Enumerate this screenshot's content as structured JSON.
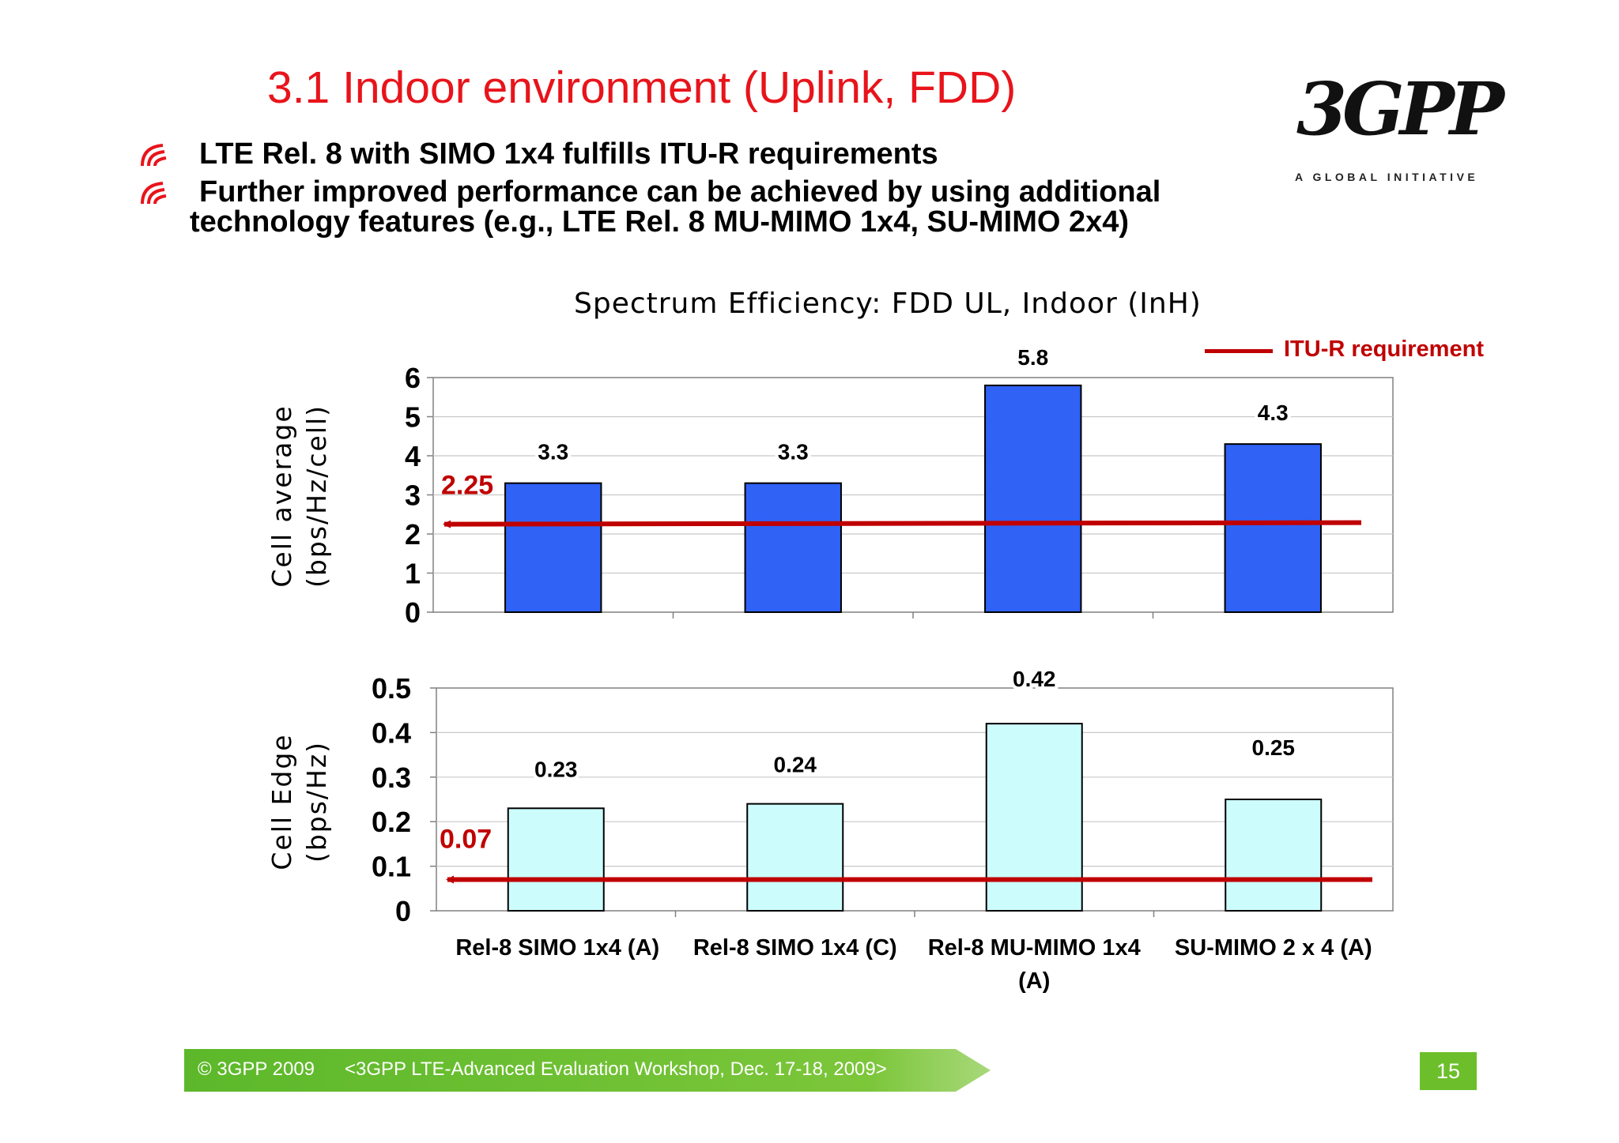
{
  "slide": {
    "title": "3.1 Indoor environment (Uplink, FDD)",
    "bullets": [
      {
        "line1": "LTE Rel. 8 with SIMO 1x4 fulfills ITU-R requirements",
        "line2": ""
      },
      {
        "line1": "Further improved performance can be achieved by using additional",
        "line2": "technology features  (e.g., LTE Rel. 8 MU-MIMO 1x4, SU-MIMO 2x4)"
      }
    ]
  },
  "logo": {
    "name": "3GPP",
    "tagline": "A GLOBAL INITIATIVE"
  },
  "colors": {
    "title": "#e8141b",
    "bar_cell_average": "#2f62f5",
    "bar_cell_edge": "#ccfcfc",
    "requirement": "#c00000",
    "footer": "#6cbf2a"
  },
  "chart_data": [
    {
      "type": "bar",
      "title": "Spectrum Efficiency: FDD UL, Indoor (InH)",
      "ylabel": "Cell average\n(bps/Hz/cell)",
      "xlabel": "",
      "categories": [
        "Rel-8 SIMO 1x4 (A)",
        "Rel-8 SIMO 1x4 (C)",
        "Rel-8 MU-MIMO 1x4\n(A)",
        "SU-MIMO 2 x 4 (A)"
      ],
      "values": [
        3.3,
        3.3,
        5.8,
        4.3
      ],
      "data_labels": [
        "3.3",
        "3.3",
        "5.8",
        "4.3"
      ],
      "ylim": [
        0,
        6
      ],
      "yticks": [
        "0",
        "1",
        "2",
        "3",
        "4",
        "5",
        "6"
      ],
      "requirement": {
        "name": "ITU-R requirement",
        "value": 2.25,
        "label": "2.25"
      },
      "legend": "top-right",
      "grid": true
    },
    {
      "type": "bar",
      "title": "",
      "ylabel": "Cell Edge\n(bps/Hz)",
      "xlabel": "",
      "categories": [
        "Rel-8 SIMO 1x4 (A)",
        "Rel-8 SIMO 1x4 (C)",
        "Rel-8 MU-MIMO 1x4\n(A)",
        "SU-MIMO 2 x 4 (A)"
      ],
      "values": [
        0.23,
        0.24,
        0.42,
        0.25
      ],
      "data_labels": [
        "0.23",
        "0.24",
        "0.42",
        "0.25"
      ],
      "ylim": [
        0,
        0.5
      ],
      "yticks": [
        "0",
        "0.1",
        "0.2",
        "0.3",
        "0.4",
        "0.5"
      ],
      "requirement": {
        "name": "ITU-R requirement",
        "value": 0.07,
        "label": "0.07"
      },
      "grid": true
    }
  ],
  "footer": {
    "copyright": "© 3GPP 2009",
    "event": "<3GPP LTE-Advanced Evaluation Workshop, Dec. 17-18, 2009>",
    "page": "15"
  }
}
